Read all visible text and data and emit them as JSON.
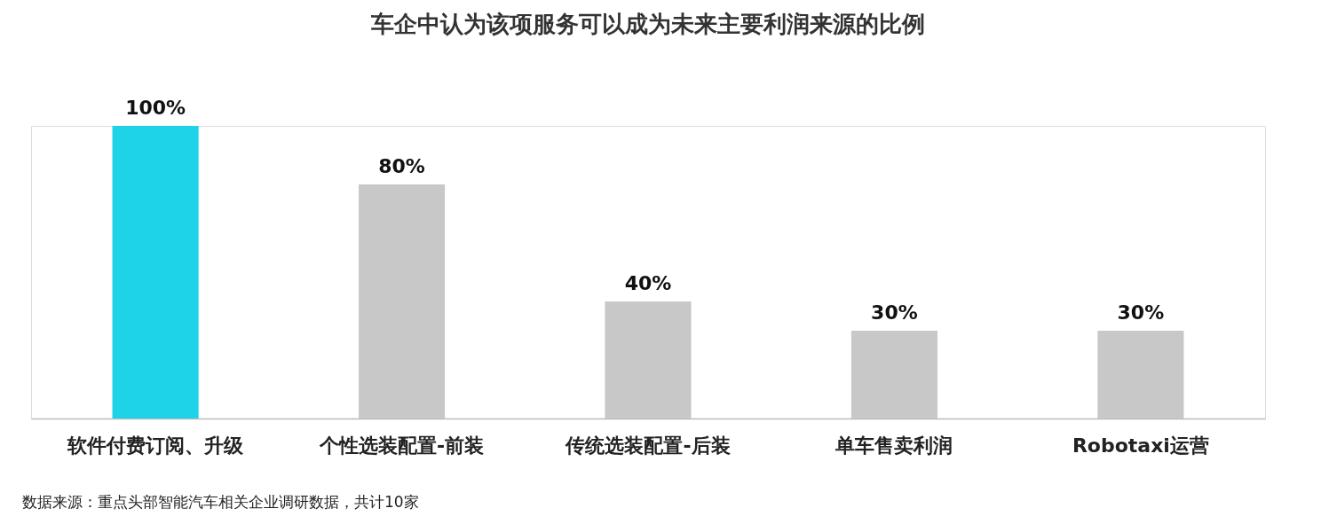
{
  "chart_data": {
    "type": "bar",
    "title": "车企中认为该项服务可以成为未来主要利润来源的比例",
    "categories": [
      "软件付费订阅、升级",
      "个性选装配置-前装",
      "传统选装配置-后装",
      "单车售卖利润",
      "Robotaxi运营"
    ],
    "values": [
      100,
      80,
      40,
      30,
      30
    ],
    "colors": [
      "#1ed3e8",
      "#c8c8c8",
      "#c8c8c8",
      "#c8c8c8",
      "#c8c8c8"
    ],
    "value_labels": [
      "100%",
      "80%",
      "40%",
      "30%",
      "30%"
    ],
    "annotations": [
      "数据来源：重点头部智能汽车相关企业调研数据，共计10家"
    ],
    "grid": false
  }
}
